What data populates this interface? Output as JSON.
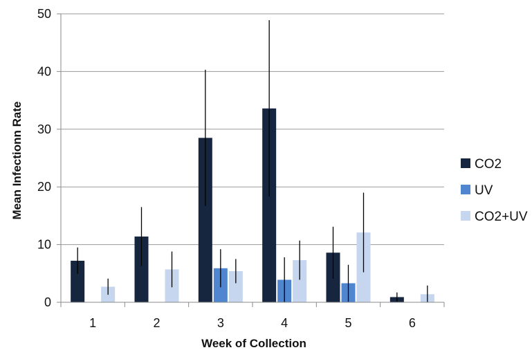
{
  "chart_data": {
    "type": "bar",
    "title": "",
    "xlabel": "Week of Collection",
    "ylabel": "Mean Infectionn Rate",
    "categories": [
      "1",
      "2",
      "3",
      "4",
      "5",
      "6"
    ],
    "ylim": [
      0,
      50
    ],
    "yticks": [
      0,
      10,
      20,
      30,
      40,
      50
    ],
    "grid": "horizontal",
    "legend_position": "right",
    "series": [
      {
        "name": "CO2",
        "color": "#17263f",
        "values": [
          7.2,
          11.4,
          28.5,
          33.6,
          8.6,
          0.9
        ],
        "error": [
          2.3,
          5.1,
          11.8,
          15.3,
          4.5,
          0.8
        ]
      },
      {
        "name": "UV",
        "color": "#4f86cf",
        "values": [
          0,
          0,
          5.9,
          3.9,
          3.3,
          0
        ],
        "error": [
          0,
          0,
          3.3,
          3.9,
          3.2,
          0
        ]
      },
      {
        "name": "CO2+UV",
        "color": "#c5d6ee",
        "values": [
          2.7,
          5.7,
          5.4,
          7.3,
          12.1,
          1.4
        ],
        "error": [
          1.4,
          3.1,
          2.1,
          3.4,
          6.9,
          1.5
        ]
      }
    ]
  }
}
